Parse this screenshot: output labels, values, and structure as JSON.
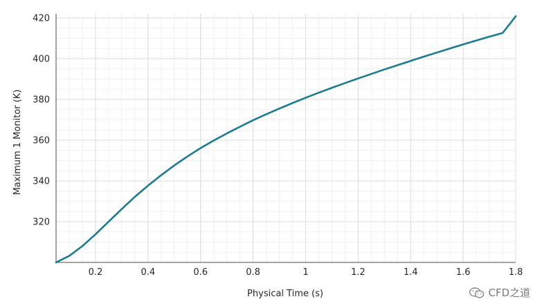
{
  "chart_data": {
    "type": "line",
    "title": "",
    "xlabel": "Physical Time (s)",
    "ylabel": "Maximum 1 Monitor (K)",
    "xlim": [
      0.05,
      1.8
    ],
    "ylim": [
      300,
      422
    ],
    "x_ticks": [
      0.2,
      0.4,
      0.6,
      0.8,
      1.0,
      1.2,
      1.4,
      1.6,
      1.8
    ],
    "x_tick_labels": [
      "0.2",
      "0.4",
      "0.6",
      "0.8",
      "1",
      "1.2",
      "1.4",
      "1.6",
      "1.8"
    ],
    "y_ticks": [
      320,
      340,
      360,
      380,
      400,
      420
    ],
    "y_tick_labels": [
      "320",
      "340",
      "360",
      "380",
      "400",
      "420"
    ],
    "grid": true,
    "minor_grid": true,
    "legend": "none",
    "series": [
      {
        "color": "#1a7a95",
        "x": [
          0.05,
          0.1,
          0.15,
          0.2,
          0.25,
          0.3,
          0.35,
          0.4,
          0.45,
          0.5,
          0.55,
          0.6,
          0.65,
          0.7,
          0.75,
          0.8,
          0.85,
          0.9,
          0.95,
          1.0,
          1.05,
          1.1,
          1.15,
          1.2,
          1.25,
          1.3,
          1.35,
          1.4,
          1.45,
          1.5,
          1.55,
          1.6,
          1.65,
          1.7,
          1.75,
          1.8
        ],
        "y": [
          300.0,
          303.2,
          308.0,
          313.8,
          320.0,
          326.2,
          332.2,
          337.7,
          342.8,
          347.6,
          352.0,
          356.1,
          359.8,
          363.3,
          366.6,
          369.8,
          372.7,
          375.5,
          378.2,
          380.8,
          383.3,
          385.7,
          388.0,
          390.3,
          392.5,
          394.7,
          396.8,
          398.9,
          401.0,
          403.0,
          405.0,
          407.0,
          408.9,
          410.8,
          412.6,
          420.8
        ]
      }
    ]
  },
  "watermark": {
    "text": "CFD之道",
    "icon": "wechat-icon"
  }
}
